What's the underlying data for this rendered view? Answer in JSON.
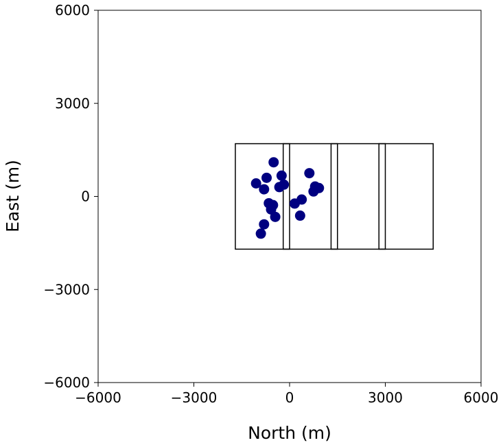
{
  "chart_data": {
    "type": "scatter",
    "xlabel": "North (m)",
    "ylabel": "East (m)",
    "xlim": [
      -6000,
      6000
    ],
    "ylim": [
      -6000,
      6000
    ],
    "xticks": [
      -6000,
      -3000,
      0,
      3000,
      6000
    ],
    "yticks": [
      -6000,
      -3000,
      0,
      3000,
      6000
    ],
    "x_tick_labels": [
      "−6000",
      "−3000",
      "0",
      "3000",
      "6000"
    ],
    "y_tick_labels": [
      "−6000",
      "−3000",
      "0",
      "3000",
      "6000"
    ],
    "grid": false,
    "point_color": "#000080",
    "outline_color": "#000000",
    "rectangles": [
      {
        "x0": -1700,
        "x1": 4500,
        "y0": -1700,
        "y1": 1700
      },
      {
        "x0": -200,
        "x1": 0,
        "y0": -1700,
        "y1": 1700
      },
      {
        "x0": 1300,
        "x1": 1500,
        "y0": -1700,
        "y1": 1700
      },
      {
        "x0": 2800,
        "x1": 3000,
        "y0": -1700,
        "y1": 1700
      }
    ],
    "points": [
      {
        "x": -500,
        "y": 1100
      },
      {
        "x": -1050,
        "y": 420
      },
      {
        "x": -720,
        "y": 600
      },
      {
        "x": -250,
        "y": 670
      },
      {
        "x": -800,
        "y": 230
      },
      {
        "x": -320,
        "y": 300
      },
      {
        "x": -180,
        "y": 380
      },
      {
        "x": -650,
        "y": -220
      },
      {
        "x": -520,
        "y": -280
      },
      {
        "x": -580,
        "y": -420
      },
      {
        "x": -450,
        "y": -660
      },
      {
        "x": -800,
        "y": -900
      },
      {
        "x": -900,
        "y": -1200
      },
      {
        "x": 620,
        "y": 750
      },
      {
        "x": 800,
        "y": 320
      },
      {
        "x": 920,
        "y": 270
      },
      {
        "x": 750,
        "y": 160
      },
      {
        "x": 380,
        "y": -100
      },
      {
        "x": 160,
        "y": -230
      },
      {
        "x": 330,
        "y": -620
      }
    ]
  }
}
